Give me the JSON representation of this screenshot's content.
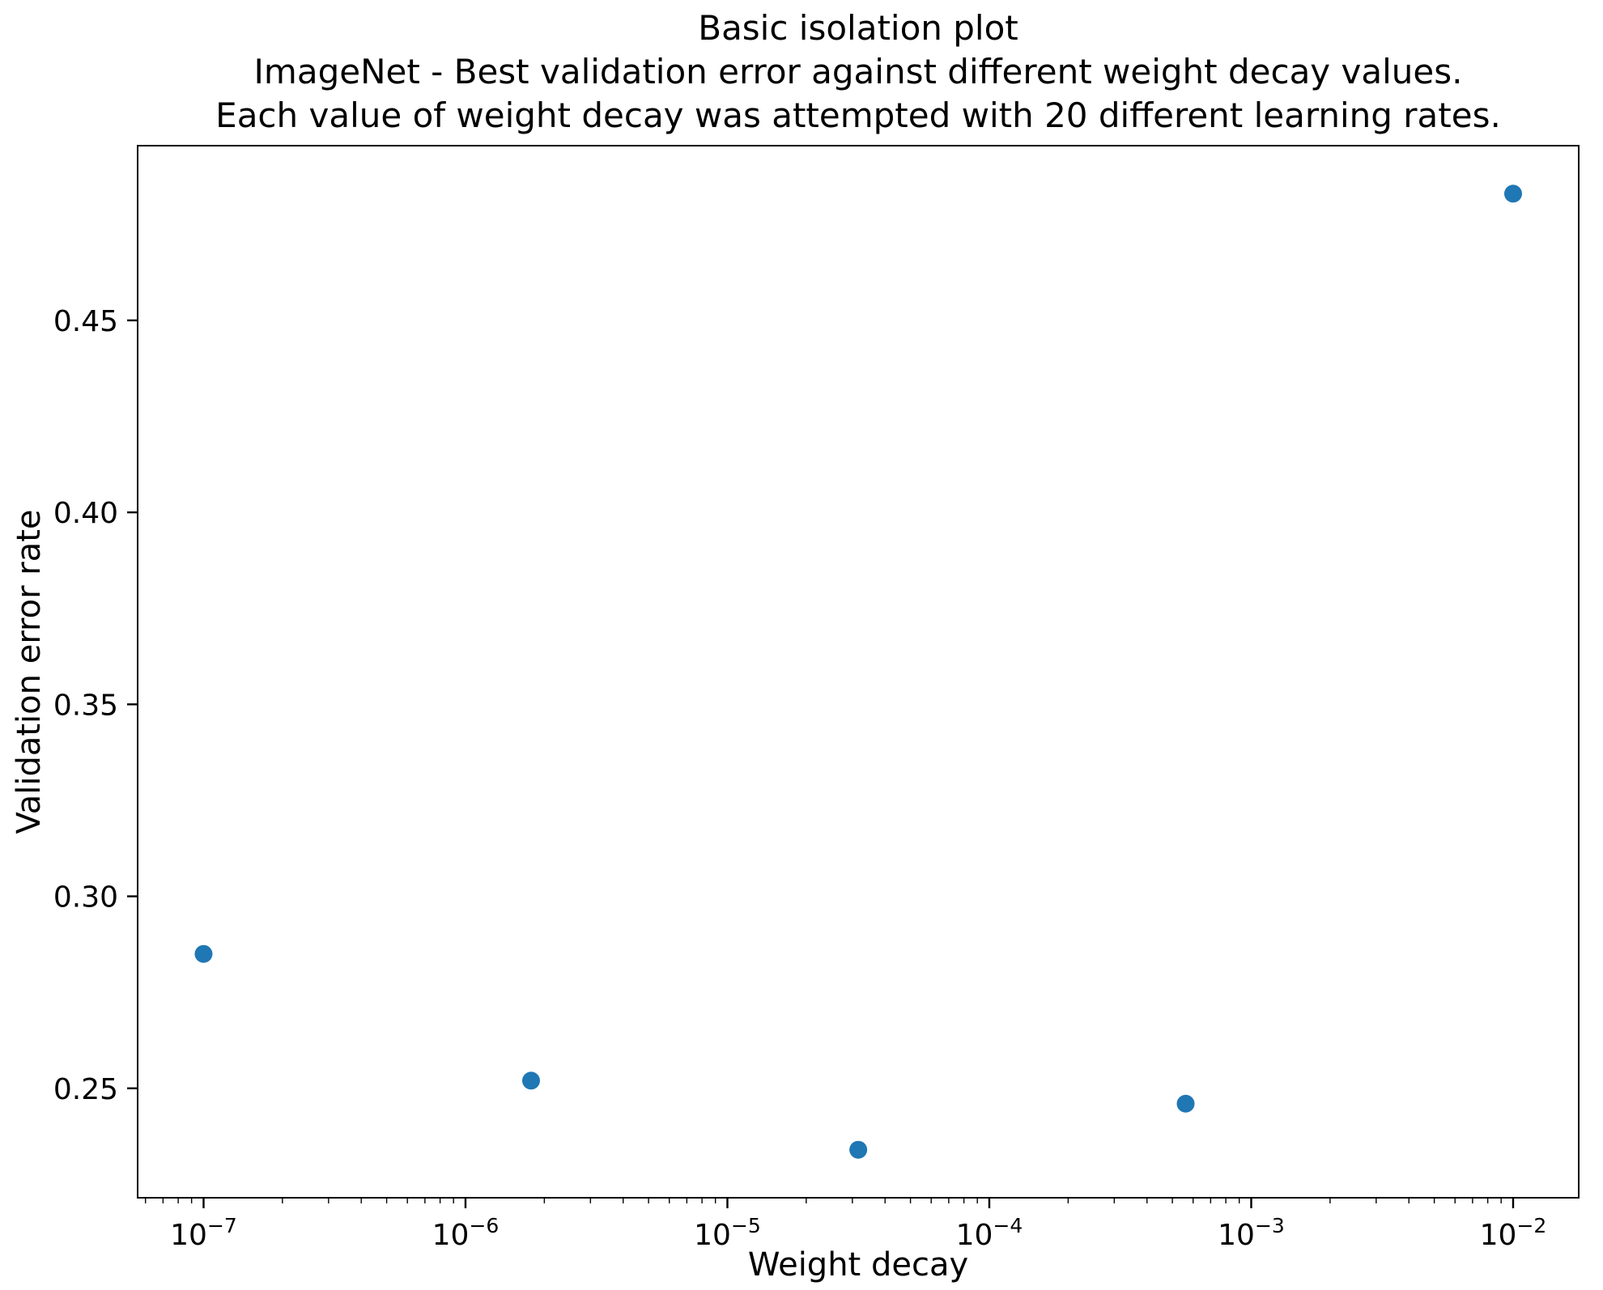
{
  "chart_data": {
    "type": "scatter",
    "title_lines": [
      "Basic isolation plot",
      "ImageNet - Best validation error against different weight decay values.",
      "Each value of weight decay was attempted with 20 different learning rates."
    ],
    "xlabel": "Weight decay",
    "ylabel": "Validation error rate",
    "x_scale": "log",
    "y_scale": "linear",
    "points": [
      {
        "x": 1e-07,
        "y": 0.285
      },
      {
        "x": 1.78e-06,
        "y": 0.252
      },
      {
        "x": 3.16e-05,
        "y": 0.234
      },
      {
        "x": 0.000562,
        "y": 0.246
      },
      {
        "x": 0.01,
        "y": 0.483
      }
    ],
    "xlim": [
      5.6e-08,
      0.0178
    ],
    "ylim": [
      0.2215,
      0.4955
    ],
    "x_tick_exponents": [
      -7,
      -6,
      -5,
      -4,
      -3,
      -2
    ],
    "y_ticks": [
      {
        "value": 0.25,
        "label": "0.25"
      },
      {
        "value": 0.3,
        "label": "0.30"
      },
      {
        "value": 0.35,
        "label": "0.35"
      },
      {
        "value": 0.4,
        "label": "0.40"
      },
      {
        "value": 0.45,
        "label": "0.45"
      }
    ],
    "marker_color": "#1f77b4",
    "axis_color": "#000000",
    "background_color": "#ffffff",
    "grid": "off",
    "legend": "none"
  }
}
